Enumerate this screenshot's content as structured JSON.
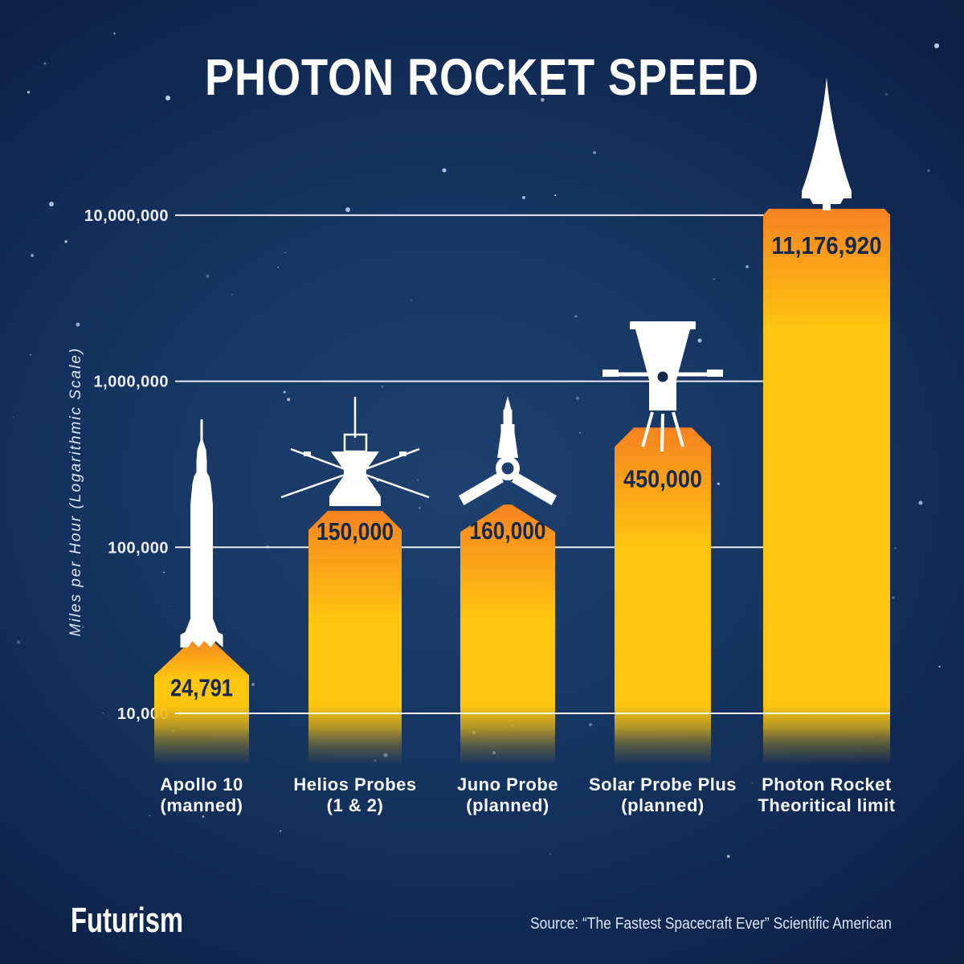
{
  "title": "PHOTON ROCKET SPEED",
  "chart_data": {
    "type": "bar",
    "scale": "logarithmic",
    "title": "PHOTON ROCKET SPEED",
    "ylabel": "Miles per Hour (Logarithmic Scale)",
    "ylim": [
      10000,
      10000000
    ],
    "grid": "horizontal",
    "legend_position": "none",
    "gridlines": [
      {
        "value": 10000000,
        "label": "10,000,000"
      },
      {
        "value": 1000000,
        "label": "1,000,000"
      },
      {
        "value": 100000,
        "label": "100,000"
      },
      {
        "value": 10000,
        "label": "10,000"
      }
    ],
    "bars": [
      {
        "name": "Apollo 10",
        "note": "(manned)",
        "value": 24791,
        "value_label": "24,791",
        "icon": "saturn-v-rocket"
      },
      {
        "name": "Helios Probes",
        "note": "(1 & 2)",
        "value": 150000,
        "value_label": "150,000",
        "icon": "helios-probe"
      },
      {
        "name": "Juno Probe",
        "note": "(planned)",
        "value": 160000,
        "value_label": "160,000",
        "icon": "juno-probe"
      },
      {
        "name": "Solar Probe Plus",
        "note": "(planned)",
        "value": 450000,
        "value_label": "450,000",
        "icon": "solar-probe-plus"
      },
      {
        "name": "Photon Rocket",
        "note": "Theoritical limit",
        "value": 11176920,
        "value_label": "11,176,920",
        "icon": "photon-rocket-cone"
      }
    ]
  },
  "footer": {
    "brand": "Futurism",
    "source": "Source: “The Fastest Spacecraft Ever” Scientific American"
  },
  "colors": {
    "background_outer": "#0a1c3e",
    "background_glow": "#1e4170",
    "bar_gold": "#ffc60f",
    "bar_orange": "#f58220",
    "grid_line": "#ffffff",
    "value_text": "#15294b",
    "label_text": "#f4f7fc",
    "silhouette": "#ffffff"
  }
}
